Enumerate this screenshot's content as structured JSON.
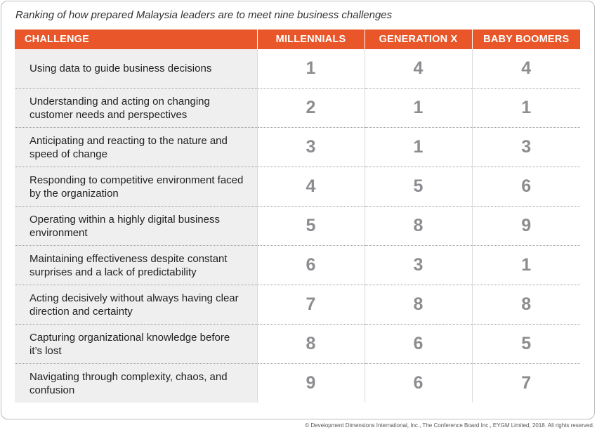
{
  "caption": "Ranking of how prepared Malaysia leaders are to meet nine business challenges",
  "colors": {
    "header_bg": "#e8562a",
    "challenge_bg": "#efefef",
    "value_text": "#8d8d91"
  },
  "footer": "© Development Dimensions International, Inc., The Conference Board Inc., EYGM Limited, 2018. All rights reserved.",
  "chart_data": {
    "type": "table",
    "title": "Ranking of how prepared Malaysia leaders are to meet nine business challenges",
    "columns": [
      "CHALLENGE",
      "MILLENNIALS",
      "GENERATION X",
      "BABY BOOMERS"
    ],
    "rows": [
      {
        "challenge": "Using data to guide business decisions",
        "values": [
          "1",
          "4",
          "4"
        ]
      },
      {
        "challenge": "Understanding and acting on changing customer needs and perspectives",
        "values": [
          "2",
          "1",
          "1"
        ]
      },
      {
        "challenge": "Anticipating and reacting to the nature and speed of change",
        "values": [
          "3",
          "1",
          "3"
        ]
      },
      {
        "challenge": "Responding to competitive environment faced by the organization",
        "values": [
          "4",
          "5",
          "6"
        ]
      },
      {
        "challenge": "Operating within a highly digital business environment",
        "values": [
          "5",
          "8",
          "9"
        ]
      },
      {
        "challenge": "Maintaining effectiveness despite constant surprises and a lack of predictability",
        "values": [
          "6",
          "3",
          "1"
        ]
      },
      {
        "challenge": "Acting decisively without always having clear direction and certainty",
        "values": [
          "7",
          "8",
          "8"
        ]
      },
      {
        "challenge": "Capturing organizational knowledge before it’s lost",
        "values": [
          "8",
          "6",
          "5"
        ]
      },
      {
        "challenge": "Navigating through complexity, chaos, and confusion",
        "values": [
          "9",
          "6",
          "7"
        ]
      }
    ]
  }
}
